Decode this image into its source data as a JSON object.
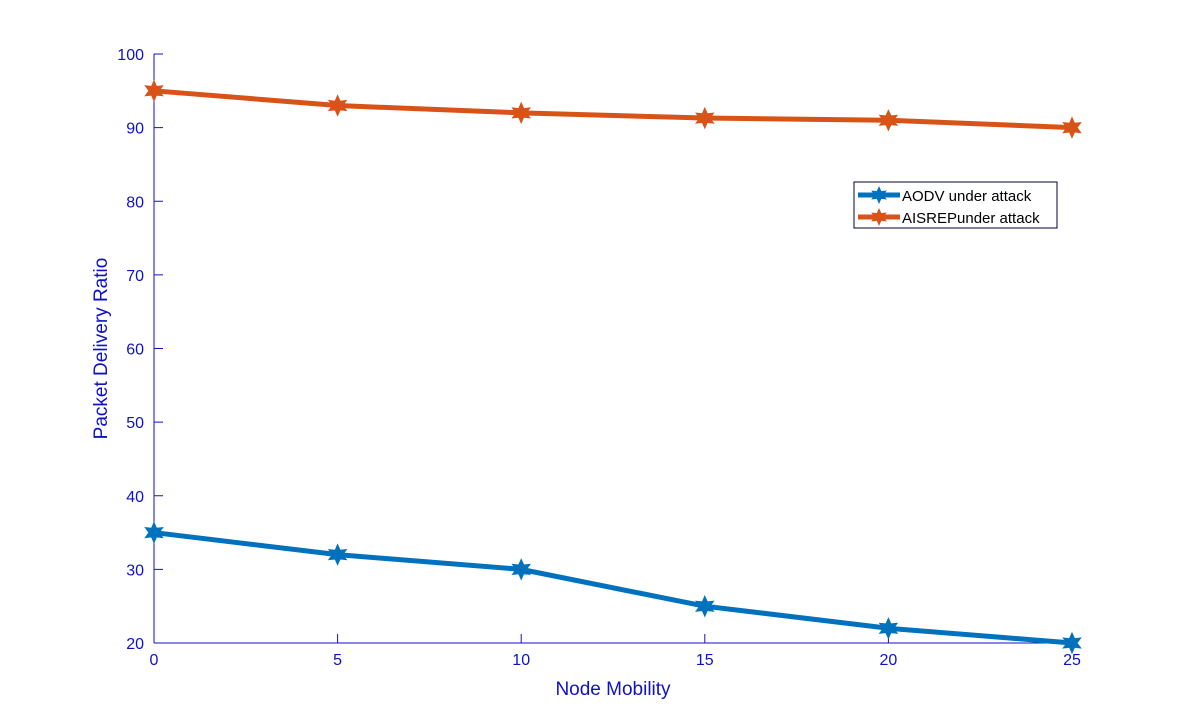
{
  "chart_data": {
    "type": "line",
    "title": "",
    "xlabel": "Node Mobility",
    "ylabel": "Packet Delivery Ratio",
    "x": [
      0,
      5,
      10,
      15,
      20,
      25
    ],
    "xlim": [
      0,
      25
    ],
    "ylim": [
      20,
      100
    ],
    "xticks": [
      0,
      5,
      10,
      15,
      20,
      25
    ],
    "yticks": [
      20,
      30,
      40,
      50,
      60,
      70,
      80,
      90,
      100
    ],
    "grid": false,
    "legend_placement": "upper-right",
    "axis_color": "#1010C8",
    "series": [
      {
        "name": "AODV under attack",
        "color": "#0072BD",
        "marker": "hexagram",
        "values": [
          35,
          32,
          30,
          25,
          22,
          20
        ]
      },
      {
        "name": "AISREPunder attack",
        "color": "#D95319",
        "marker": "hexagram",
        "values": [
          95,
          93,
          92,
          91.3,
          91,
          90
        ]
      }
    ]
  }
}
